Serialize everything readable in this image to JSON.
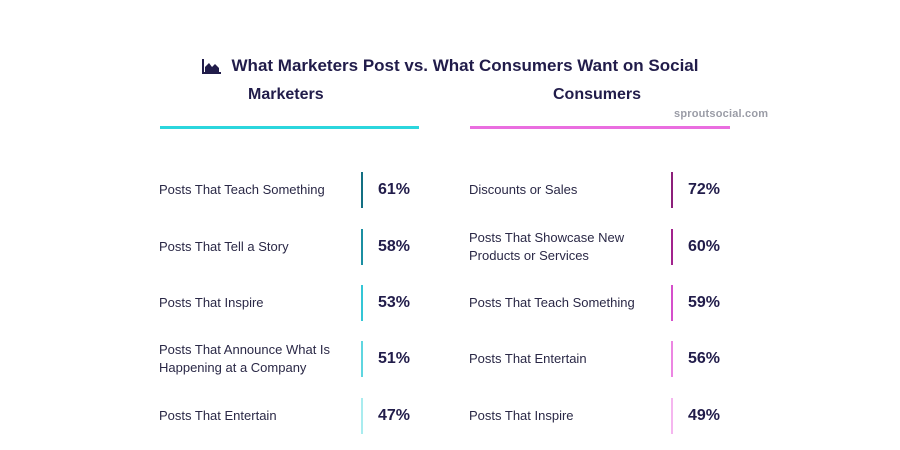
{
  "title": "What Marketers Post vs. What Consumers Want on Social",
  "watermark": "sproutsocial.com",
  "icon": "area-chart-icon",
  "chart_data": {
    "type": "table",
    "title": "What Marketers Post vs. What Consumers Want on Social",
    "series": [
      {
        "name": "Marketers",
        "color": "#2bd6dd",
        "rows": [
          {
            "label": "Posts That Teach Something",
            "value": "61%",
            "color": "#136f82"
          },
          {
            "label": "Posts That Tell a Story",
            "value": "58%",
            "color": "#1b8fa2"
          },
          {
            "label": "Posts That Inspire",
            "value": "53%",
            "color": "#34c6d6"
          },
          {
            "label": "Posts That Announce What Is Happening at a Company",
            "value": "51%",
            "color": "#5fd6e0"
          },
          {
            "label": "Posts That Entertain",
            "value": "47%",
            "color": "#a9ecef"
          }
        ]
      },
      {
        "name": "Consumers",
        "color": "#ea6ee0",
        "rows": [
          {
            "label": "Discounts or Sales",
            "value": "72%",
            "color": "#8c1f7a"
          },
          {
            "label": "Posts That Showcase New Products or Services",
            "value": "60%",
            "color": "#a2238d"
          },
          {
            "label": "Posts That Teach Something",
            "value": "59%",
            "color": "#d54fcb"
          },
          {
            "label": "Posts That Entertain",
            "value": "56%",
            "color": "#ec86e2"
          },
          {
            "label": "Posts That Inspire",
            "value": "49%",
            "color": "#f5b6ef"
          }
        ]
      }
    ]
  }
}
